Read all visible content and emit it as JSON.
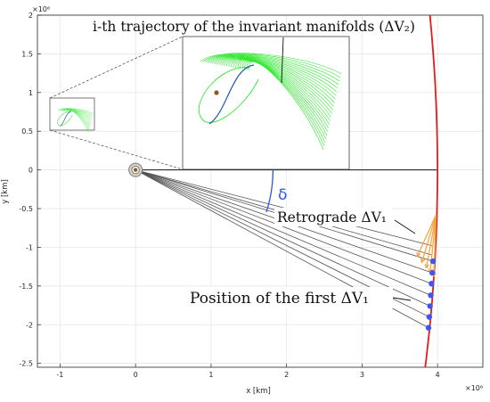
{
  "chart_data": {
    "type": "line",
    "xlabel": "x [km]",
    "ylabel": "y [km]",
    "x_exponent_label": "×10⁶",
    "y_exponent_label": "×10⁶",
    "xlim": [
      -1.3,
      4.6
    ],
    "ylim": [
      -2.55,
      2.0
    ],
    "xticks": [
      -1,
      0,
      1,
      2,
      3,
      4
    ],
    "xtick_labels": [
      "-1",
      "0",
      "1",
      "2",
      "3",
      "4"
    ],
    "yticks": [
      2,
      1.5,
      1,
      0.5,
      0,
      -0.5,
      -1,
      -1.5,
      -2,
      -2.5
    ],
    "ytick_labels": [
      "2",
      "1.5",
      "1",
      "0.5",
      "0",
      "-0.5",
      "-1",
      "-1.5",
      "-2",
      "-2.5"
    ],
    "grid": true,
    "colors": {
      "orbit": "#e01b1b",
      "first_dv_points": "#3f56f2",
      "retrograde_arrows": "#f4a742",
      "manifolds": "#2fe82f",
      "manifold_dark": "#1f5aa8",
      "rays": "#555555",
      "delta_arc": "#2a55e6",
      "body": "#8a5b20"
    },
    "first_dv_points": [
      [
        3.94,
        -1.18
      ],
      [
        3.93,
        -1.33
      ],
      [
        3.92,
        -1.47
      ],
      [
        3.91,
        -1.62
      ],
      [
        3.9,
        -1.76
      ],
      [
        3.89,
        -1.9
      ],
      [
        3.88,
        -2.04
      ]
    ],
    "retrograde_tip": [
      3.98,
      -0.58
    ],
    "annotations": {
      "manifolds": "i-th trajectory of the invariant manifolds (ΔV₂)",
      "retrograde": "Retrograde ΔV₁",
      "first_dv": "Position of the first ΔV₁",
      "angle": "δ"
    }
  }
}
